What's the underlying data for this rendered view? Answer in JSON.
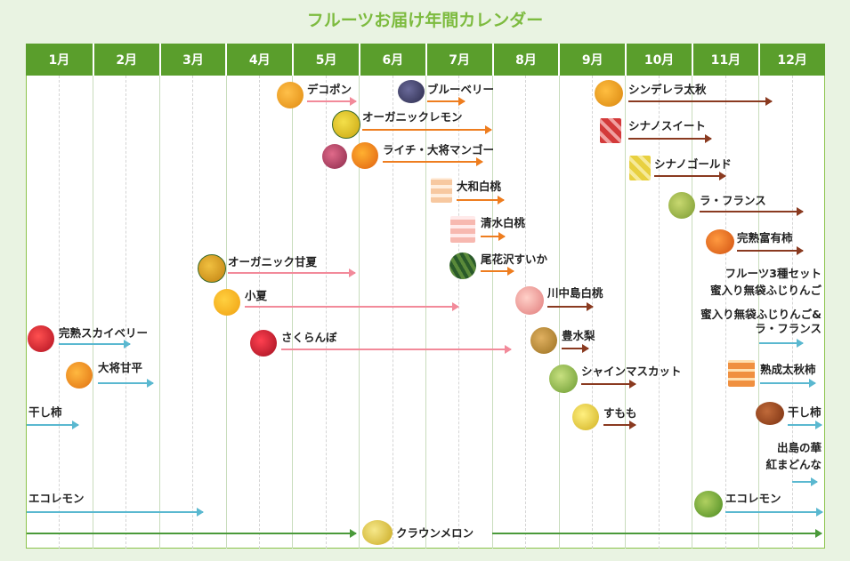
{
  "title": "フルーツお届け年間カレンダー",
  "months": [
    "1月",
    "2月",
    "3月",
    "4月",
    "5月",
    "6月",
    "7月",
    "8月",
    "9月",
    "10月",
    "11月",
    "12月"
  ],
  "events": {
    "dekopon": "デコポン",
    "blueberry": "ブルーベリー",
    "cinderella": "シンデレラ太秋",
    "organic_lemon": "オーガニックレモン",
    "shinano_sweet": "シナノスイート",
    "lychee_mango": "ライチ・大将マンゴー",
    "shinano_gold": "シナノゴールド",
    "yamato_peach": "大和白桃",
    "la_france": "ラ・フランス",
    "shimizu_peach": "清水白桃",
    "fuyu_kaki": "完熟富有柿",
    "organic_amanatsu": "オーガニック甘夏",
    "obanazawa_watermelon": "尾花沢すいか",
    "set_line1": "フルーツ3種セット",
    "set_line2": "蜜入り無袋ふじりんご",
    "konatsu": "小夏",
    "kawanakajima_peach": "川中島白桃",
    "fuji_lf_line1": "蜜入り無袋ふじりんご&",
    "fuji_lf_line2": "ラ・フランス",
    "skyberry": "完熟スカイベリー",
    "sakuranbo": "さくらんぼ",
    "hosui_pear": "豊水梨",
    "taisho_amahira": "大将甘平",
    "shine_muscat": "シャインマスカット",
    "jukusei_taishu": "熟成太秋柿",
    "hoshigaki_jan": "干し柿",
    "sumomo": "すもも",
    "hoshigaki_dec": "干し柿",
    "dejima_line1": "出島の華",
    "dejima_line2": "紅まどんな",
    "eco_lemon_jan": "エコレモン",
    "eco_lemon_nov": "エコレモン",
    "crown_melon": "クラウンメロン"
  },
  "colors": {
    "title": "#7dbb3f",
    "month_bar": "#5a9e2c",
    "pink_arrow": "#f28a9a",
    "orange_arrow": "#ee7d1f",
    "brown_arrow": "#8a3a20",
    "blue_arrow": "#5ab8d0",
    "green_arrow": "#4a9a3a"
  }
}
